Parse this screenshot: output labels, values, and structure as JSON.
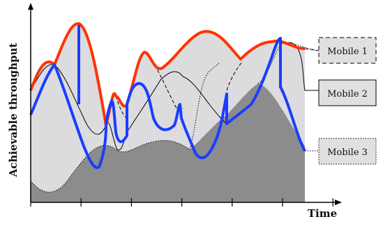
{
  "diagram": {
    "y_axis_label": "Achievable throughput",
    "x_axis_label": "Time",
    "legend": [
      {
        "id": "mobile1",
        "label": "Mobile 1",
        "box_fill": "#e0e0e3",
        "border": "dashed"
      },
      {
        "id": "mobile2",
        "label": "Mobile 2",
        "box_fill": "#e0e0e3",
        "border": "solid"
      },
      {
        "id": "mobile3",
        "label": "Mobile 3",
        "box_fill": "#e0e0e3",
        "border": "dotted"
      }
    ],
    "colors": {
      "upper_envelope": "#ff3300",
      "scheduled_path": "#1a3dff",
      "dark_area": "#8c8c8c",
      "light_area": "#dcdcdf",
      "lines": "#000000"
    },
    "x_tick_count": 7
  }
}
